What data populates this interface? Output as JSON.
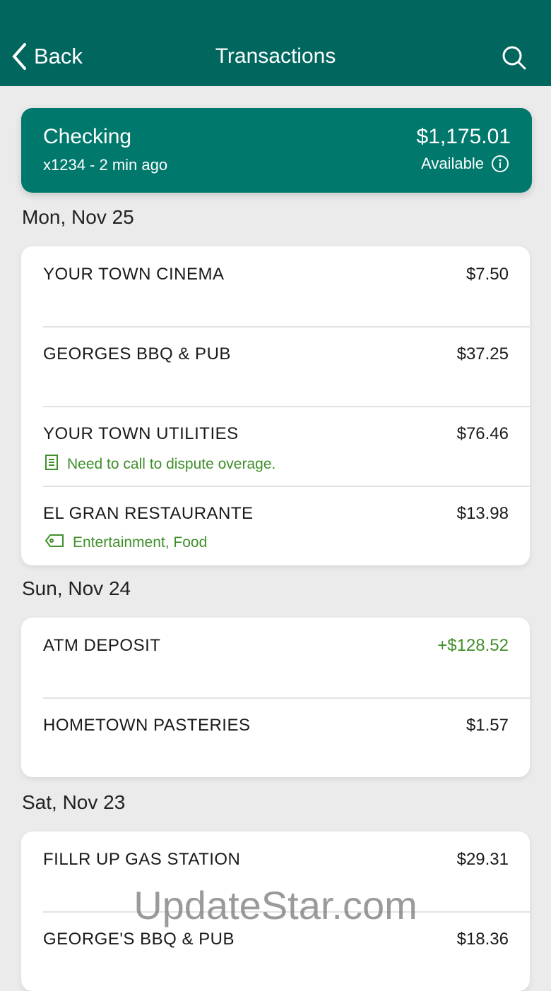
{
  "header": {
    "back_label": "Back",
    "title": "Transactions"
  },
  "account": {
    "name": "Checking",
    "subtitle": "x1234 - 2 min ago",
    "balance": "$1,175.01",
    "balance_label": "Available"
  },
  "sections": [
    {
      "date": "Mon, Nov 25",
      "items": [
        {
          "name": "YOUR TOWN CINEMA",
          "amount": "$7.50"
        },
        {
          "name": "GEORGES BBQ & PUB",
          "amount": "$37.25"
        },
        {
          "name": "YOUR TOWN UTILITIES",
          "amount": "$76.46",
          "note": "Need to call to dispute overage.",
          "note_icon": "note-icon"
        },
        {
          "name": "EL GRAN RESTAURANTE",
          "amount": "$13.98",
          "note": "Entertainment, Food",
          "note_icon": "tag-icon"
        }
      ]
    },
    {
      "date": "Sun, Nov 24",
      "items": [
        {
          "name": "ATM DEPOSIT",
          "amount": "+$128.52",
          "positive": true
        },
        {
          "name": "HOMETOWN PASTERIES",
          "amount": "$1.57"
        }
      ]
    },
    {
      "date": "Sat, Nov 23",
      "items": [
        {
          "name": "FILLR UP GAS STATION",
          "amount": "$29.31"
        },
        {
          "name": "GEORGE'S BBQ & PUB",
          "amount": "$18.36"
        }
      ]
    }
  ],
  "watermark": "UpdateStar.com",
  "colors": {
    "header": "#00665e",
    "account_card": "#00786c",
    "positive": "#3f8f2a"
  }
}
